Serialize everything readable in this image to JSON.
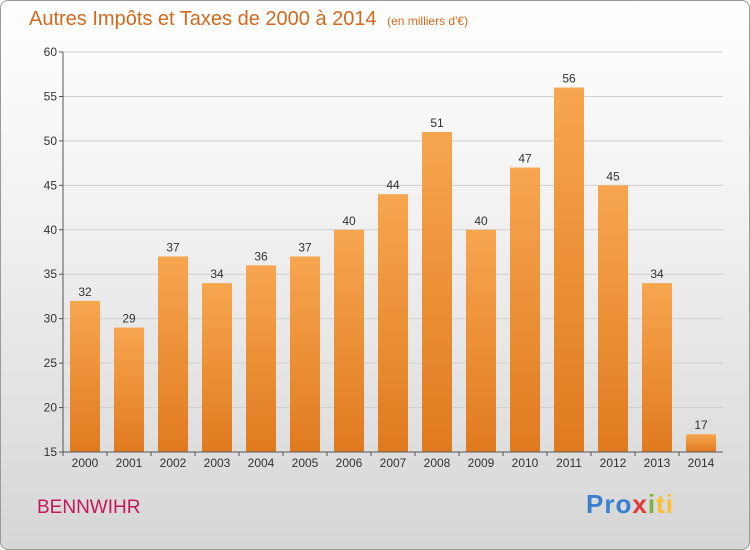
{
  "header": {
    "title": "Autres Impôts et Taxes de 2000 à 2014",
    "unit": "(en milliers d'€)"
  },
  "footer": {
    "city": "BENNWIHR",
    "logo_parts": [
      "Pro",
      "x",
      "i",
      "ti"
    ]
  },
  "colors": {
    "bar_top": "#f7a650",
    "bar_bottom": "#e07a1f",
    "title": "#d2691e",
    "city": "#c2185b"
  },
  "chart_data": {
    "type": "bar",
    "categories": [
      "2000",
      "2001",
      "2002",
      "2003",
      "2004",
      "2005",
      "2006",
      "2007",
      "2008",
      "2009",
      "2010",
      "2011",
      "2012",
      "2013",
      "2014"
    ],
    "values": [
      32,
      29,
      37,
      34,
      36,
      37,
      40,
      44,
      51,
      40,
      47,
      56,
      45,
      34,
      17
    ],
    "title": "Autres Impôts et Taxes de 2000 à 2014",
    "xlabel": "",
    "ylabel": "",
    "ylim": [
      15,
      60
    ],
    "yticks": [
      15,
      20,
      25,
      30,
      35,
      40,
      45,
      50,
      55,
      60
    ],
    "grid": "horizontal",
    "data_labels": true
  }
}
